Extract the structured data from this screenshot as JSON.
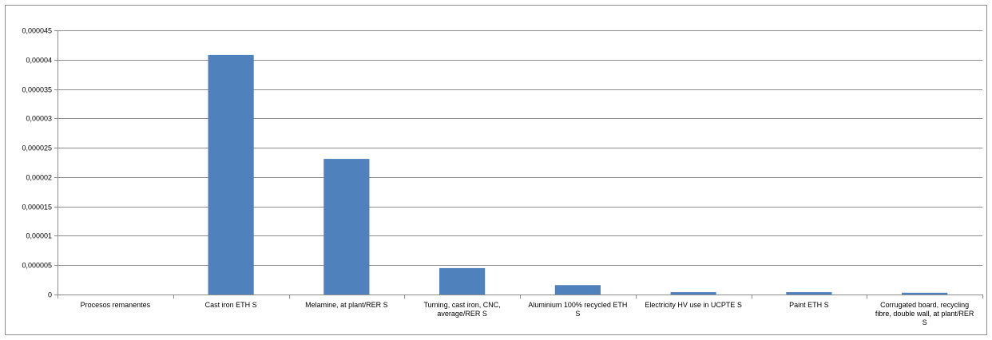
{
  "chart_data": {
    "type": "bar",
    "categories": [
      "Procesos remanentes",
      "Cast iron ETH S",
      "Melamine, at plant/RER S",
      "Turning, cast iron, CNC, average/RER S",
      "Aluminium 100% recycled ETH S",
      "Electricity HV use in UCPTE S",
      "Paint ETH S",
      "Corrugated board, recycling fibre, double wall, at plant/RER S"
    ],
    "category_label_lines": [
      [
        "Procesos remanentes"
      ],
      [
        "Cast iron ETH S"
      ],
      [
        "Melamine, at plant/RER S"
      ],
      [
        "Turning, cast iron, CNC,",
        "average/RER S"
      ],
      [
        "Aluminium 100% recycled ETH",
        "S"
      ],
      [
        "Electricity HV use in UCPTE S"
      ],
      [
        "Paint ETH S"
      ],
      [
        "Corrugated board, recycling",
        "fibre, double wall, at plant/RER",
        "S"
      ]
    ],
    "values": [
      0,
      4.08e-05,
      2.31e-05,
      4.5e-06,
      1.6e-06,
      4e-07,
      4e-07,
      3e-07
    ],
    "ylim": [
      0,
      4.5e-05
    ],
    "yticks": [
      0,
      5e-06,
      1e-05,
      1.5e-05,
      2e-05,
      2.5e-05,
      3e-05,
      3.5e-05,
      4e-05,
      4.5e-05
    ],
    "ytick_labels": [
      "0",
      "0,000005",
      "0,00001",
      "0,000015",
      "0,00002",
      "0,000025",
      "0,00003",
      "0,000035",
      "0,00004",
      "0,000045"
    ],
    "title": "",
    "xlabel": "",
    "ylabel": "",
    "grid": true,
    "legend": "none",
    "bar_color": "#4f81bd",
    "grid_color": "#8c8c8c"
  }
}
